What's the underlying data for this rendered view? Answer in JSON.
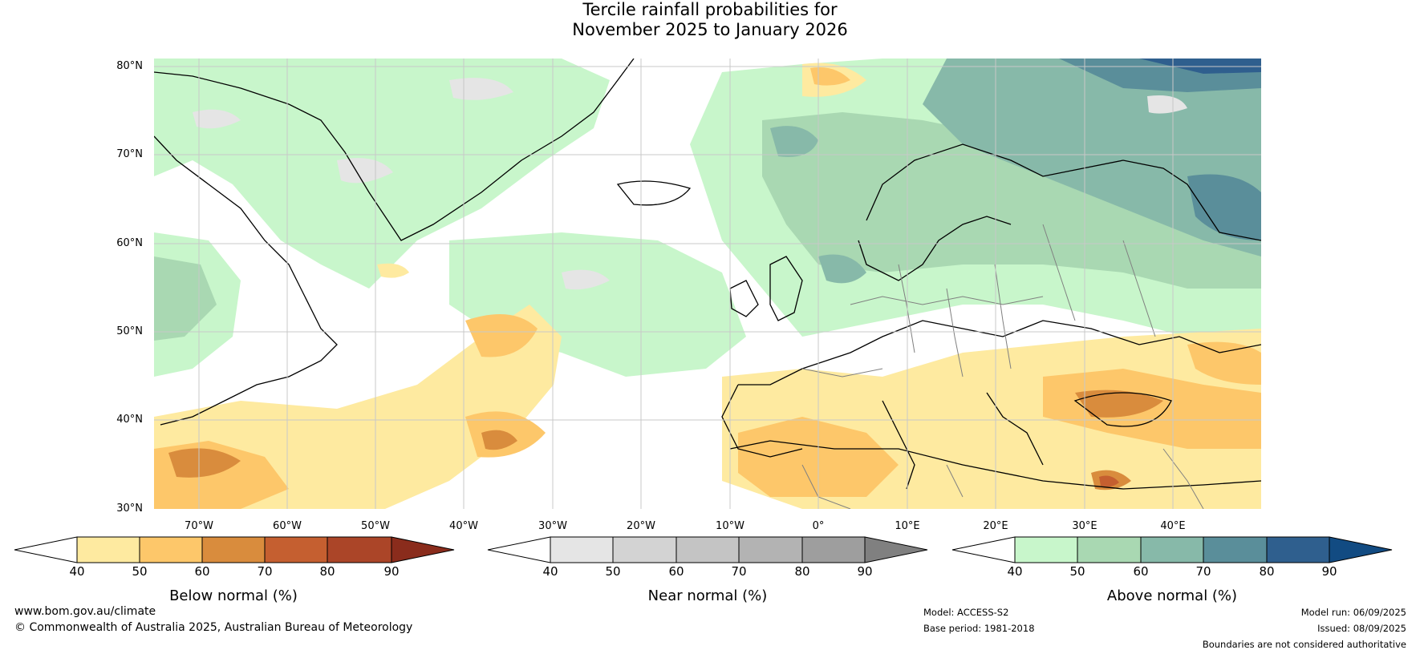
{
  "title": {
    "line1": "Tercile rainfall probabilities for",
    "line2": "November 2025 to January 2026"
  },
  "map": {
    "region": "North Atlantic and Europe",
    "lat_labels": [
      "80°N",
      "70°N",
      "60°N",
      "50°N",
      "40°N",
      "30°N"
    ],
    "lon_labels": [
      "70°W",
      "60°W",
      "50°W",
      "40°W",
      "30°W",
      "20°W",
      "10°W",
      "0°",
      "10°E",
      "20°E",
      "30°E",
      "40°E"
    ],
    "ocean_color": "#ffffff",
    "coastline_color": "#000000",
    "border_color": "#808080"
  },
  "colorbars": [
    {
      "label": "Below normal (%)",
      "ticks": [
        "40",
        "50",
        "60",
        "70",
        "80",
        "90"
      ],
      "colors": [
        "#ffffff",
        "#feeaa0",
        "#fdc76a",
        "#d98c3d",
        "#c55f30",
        "#ab4528",
        "#8a2c1c"
      ]
    },
    {
      "label": "Near normal (%)",
      "ticks": [
        "40",
        "50",
        "60",
        "70",
        "80",
        "90"
      ],
      "colors": [
        "#ffffff",
        "#e5e5e5",
        "#d3d3d3",
        "#c4c4c4",
        "#b3b3b3",
        "#9e9e9e",
        "#808080"
      ]
    },
    {
      "label": "Above normal (%)",
      "ticks": [
        "40",
        "50",
        "60",
        "70",
        "80",
        "90"
      ],
      "colors": [
        "#ffffff",
        "#c8f6cb",
        "#a9d8b2",
        "#87b9a9",
        "#5a8e9a",
        "#2f5f8e",
        "#124b82"
      ]
    }
  ],
  "footer": {
    "website": "www.bom.gov.au/climate",
    "copyright": "© Commonwealth of Australia 2025, Australian Bureau of Meteorology",
    "model": "Model: ACCESS-S2",
    "base_period": "Base period: 1981-2018",
    "model_run": "Model run: 06/09/2025",
    "issued": "Issued: 08/09/2025",
    "disclaimer": "Boundaries are not considered authoritative"
  }
}
